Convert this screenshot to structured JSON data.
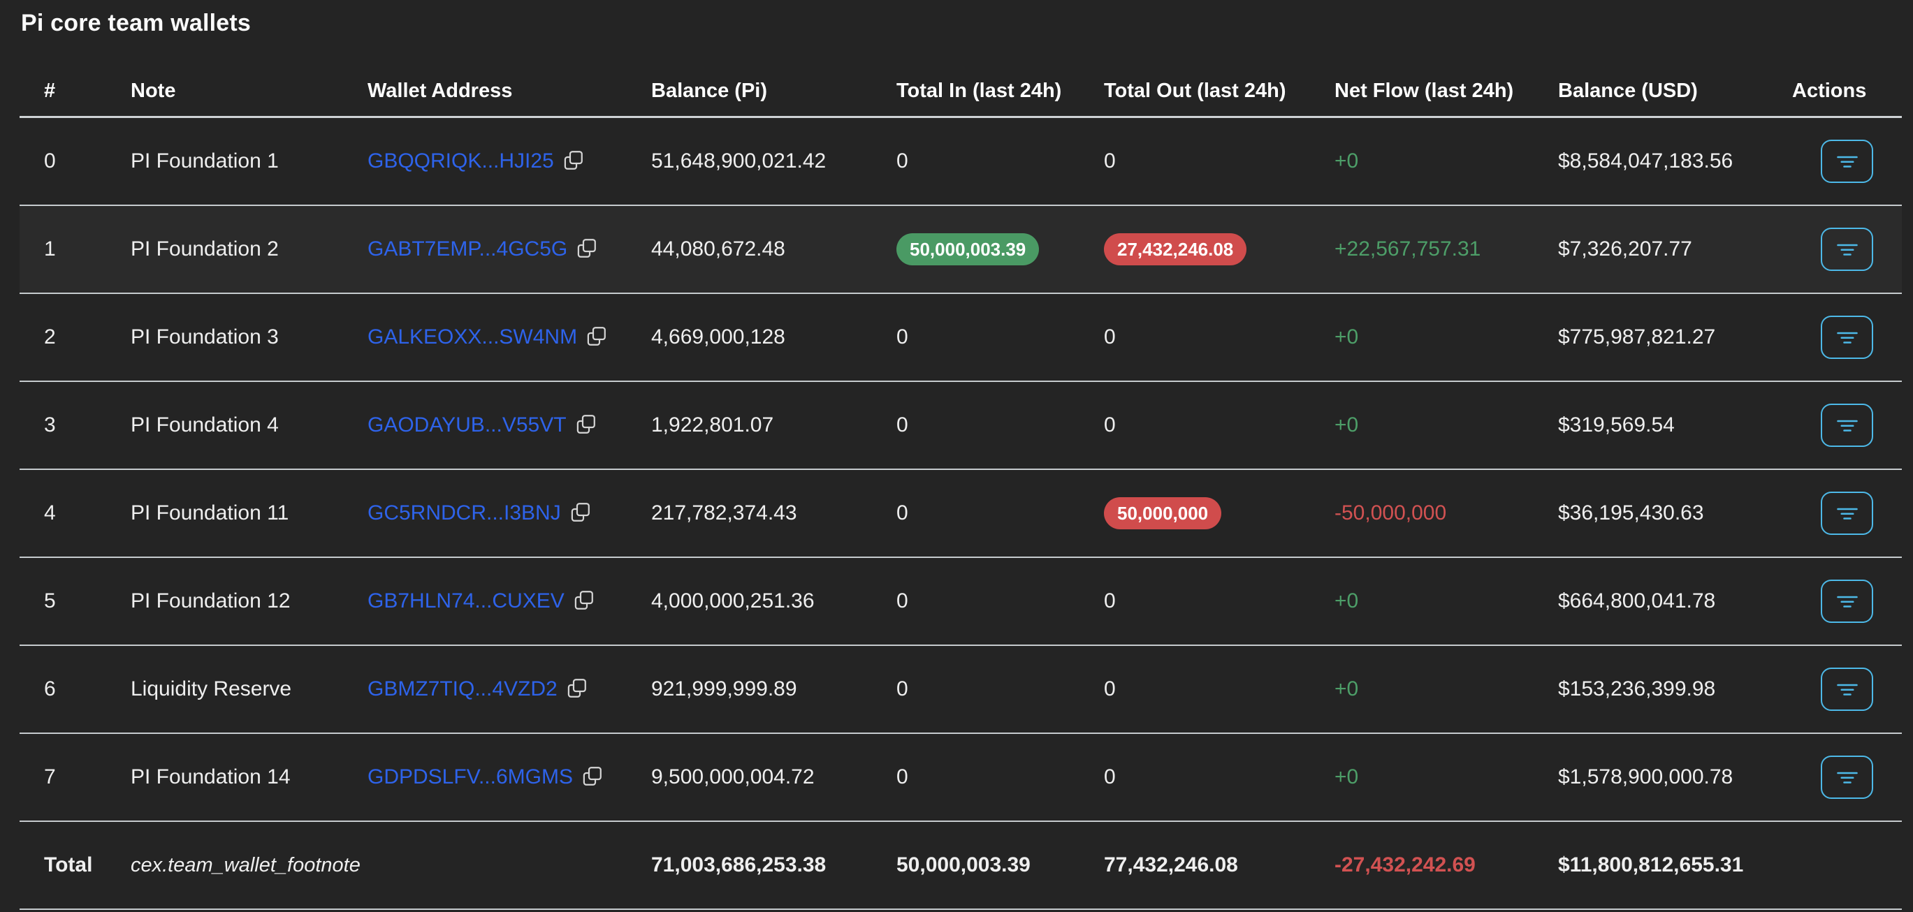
{
  "title": "Pi core team wallets",
  "colors": {
    "background": "#242424",
    "row_highlight": "#2b2b2b",
    "divider": "#c6cbce",
    "address_blue": "#2e63ea",
    "positive_green": "#4d9e68",
    "negative_red": "#d25252",
    "badge_green_bg": "#4a9a64",
    "badge_red_bg": "#d04c4c",
    "action_accent": "#4db9e8",
    "text_primary": "#efefef"
  },
  "icons": {
    "copy": "copy-icon",
    "action": "filter-lines-icon"
  },
  "table": {
    "columns": [
      {
        "key": "index",
        "label": "#"
      },
      {
        "key": "note",
        "label": "Note"
      },
      {
        "key": "wallet",
        "label": "Wallet Address"
      },
      {
        "key": "balance_pi",
        "label": "Balance (Pi)"
      },
      {
        "key": "total_in",
        "label": "Total In (last 24h)"
      },
      {
        "key": "total_out",
        "label": "Total Out (last 24h)"
      },
      {
        "key": "net_flow",
        "label": "Net Flow (last 24h)"
      },
      {
        "key": "balance_usd",
        "label": "Balance (USD)"
      },
      {
        "key": "actions",
        "label": "Actions"
      }
    ],
    "rows": [
      {
        "index": "0",
        "note": "PI Foundation 1",
        "wallet": "GBQQRIQK...HJI25",
        "balance_pi": "51,648,900,021.42",
        "total_in": {
          "text": "0",
          "badge": null
        },
        "total_out": {
          "text": "0",
          "badge": null
        },
        "net_flow": {
          "text": "+0",
          "sign": "positive"
        },
        "balance_usd": "$8,584,047,183.56",
        "highlighted": false
      },
      {
        "index": "1",
        "note": "PI Foundation 2",
        "wallet": "GABT7EMP...4GC5G",
        "balance_pi": "44,080,672.48",
        "total_in": {
          "text": "50,000,003.39",
          "badge": "green"
        },
        "total_out": {
          "text": "27,432,246.08",
          "badge": "red"
        },
        "net_flow": {
          "text": "+22,567,757.31",
          "sign": "positive"
        },
        "balance_usd": "$7,326,207.77",
        "highlighted": true
      },
      {
        "index": "2",
        "note": "PI Foundation 3",
        "wallet": "GALKEOXX...SW4NM",
        "balance_pi": "4,669,000,128",
        "total_in": {
          "text": "0",
          "badge": null
        },
        "total_out": {
          "text": "0",
          "badge": null
        },
        "net_flow": {
          "text": "+0",
          "sign": "positive"
        },
        "balance_usd": "$775,987,821.27",
        "highlighted": false
      },
      {
        "index": "3",
        "note": "PI Foundation 4",
        "wallet": "GAODAYUB...V55VT",
        "balance_pi": "1,922,801.07",
        "total_in": {
          "text": "0",
          "badge": null
        },
        "total_out": {
          "text": "0",
          "badge": null
        },
        "net_flow": {
          "text": "+0",
          "sign": "positive"
        },
        "balance_usd": "$319,569.54",
        "highlighted": false
      },
      {
        "index": "4",
        "note": "PI Foundation 11",
        "wallet": "GC5RNDCR...I3BNJ",
        "balance_pi": "217,782,374.43",
        "total_in": {
          "text": "0",
          "badge": null
        },
        "total_out": {
          "text": "50,000,000",
          "badge": "red"
        },
        "net_flow": {
          "text": "-50,000,000",
          "sign": "negative"
        },
        "balance_usd": "$36,195,430.63",
        "highlighted": false
      },
      {
        "index": "5",
        "note": "PI Foundation 12",
        "wallet": "GB7HLN74...CUXEV",
        "balance_pi": "4,000,000,251.36",
        "total_in": {
          "text": "0",
          "badge": null
        },
        "total_out": {
          "text": "0",
          "badge": null
        },
        "net_flow": {
          "text": "+0",
          "sign": "positive"
        },
        "balance_usd": "$664,800,041.78",
        "highlighted": false
      },
      {
        "index": "6",
        "note": "Liquidity Reserve",
        "wallet": "GBMZ7TIQ...4VZD2",
        "balance_pi": "921,999,999.89",
        "total_in": {
          "text": "0",
          "badge": null
        },
        "total_out": {
          "text": "0",
          "badge": null
        },
        "net_flow": {
          "text": "+0",
          "sign": "positive"
        },
        "balance_usd": "$153,236,399.98",
        "highlighted": false
      },
      {
        "index": "7",
        "note": "PI Foundation 14",
        "wallet": "GDPDSLFV...6MGMS",
        "balance_pi": "9,500,000,004.72",
        "total_in": {
          "text": "0",
          "badge": null
        },
        "total_out": {
          "text": "0",
          "badge": null
        },
        "net_flow": {
          "text": "+0",
          "sign": "positive"
        },
        "balance_usd": "$1,578,900,000.78",
        "highlighted": false
      }
    ],
    "total": {
      "label": "Total",
      "note": "cex.team_wallet_footnote",
      "balance_pi": "71,003,686,253.38",
      "total_in": "50,000,003.39",
      "total_out": "77,432,246.08",
      "net_flow": "-27,432,242.69",
      "net_flow_sign": "negative",
      "balance_usd": "$11,800,812,655.31"
    }
  }
}
